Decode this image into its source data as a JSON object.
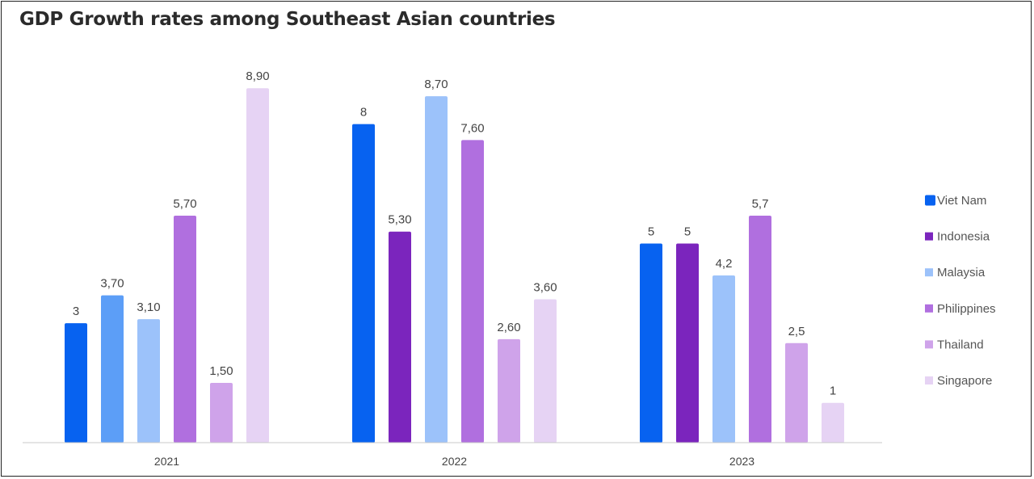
{
  "chart_data": {
    "type": "bar",
    "title": "GDP Growth rates among Southeast Asian countries",
    "categories": [
      "2021",
      "2022",
      "2023"
    ],
    "series": [
      {
        "name": "Viet Nam",
        "values": [
          3,
          8,
          5
        ],
        "labels": [
          "3",
          "8",
          "5"
        ]
      },
      {
        "name": "Indonesia",
        "values": [
          3.7,
          5.3,
          5
        ],
        "labels": [
          "3,70",
          "5,30",
          "5"
        ]
      },
      {
        "name": "Malaysia",
        "values": [
          3.1,
          8.7,
          4.2
        ],
        "labels": [
          "3,10",
          "8,70",
          "4,2"
        ]
      },
      {
        "name": "Philippines",
        "values": [
          5.7,
          7.6,
          5.7
        ],
        "labels": [
          "5,70",
          "7,60",
          "5,7"
        ]
      },
      {
        "name": "Thailand",
        "values": [
          1.5,
          2.6,
          2.5
        ],
        "labels": [
          "1,50",
          "2,60",
          "2,5"
        ]
      },
      {
        "name": "Singapore",
        "values": [
          8.9,
          3.6,
          1
        ],
        "labels": [
          "8,90",
          "3,60",
          "1"
        ]
      }
    ],
    "bar_colors": [
      [
        "#0762f0",
        "#5c9ef7",
        "#9cc2fa",
        "#b06fdf",
        "#cfa3ea",
        "#e6d3f4"
      ],
      [
        "#0762f0",
        "#7b25bd",
        "#9cc2fa",
        "#b06fdf",
        "#cfa3ea",
        "#e6d3f4"
      ],
      [
        "#0762f0",
        "#7b25bd",
        "#9cc2fa",
        "#b06fdf",
        "#cfa3ea",
        "#e6d3f4"
      ]
    ],
    "legend_colors": [
      "#0762f0",
      "#7b25bd",
      "#9cc2fa",
      "#b06fdf",
      "#cfa3ea",
      "#e6d3f4"
    ],
    "ylim": [
      0,
      9
    ],
    "grid": false,
    "legend": "right"
  }
}
